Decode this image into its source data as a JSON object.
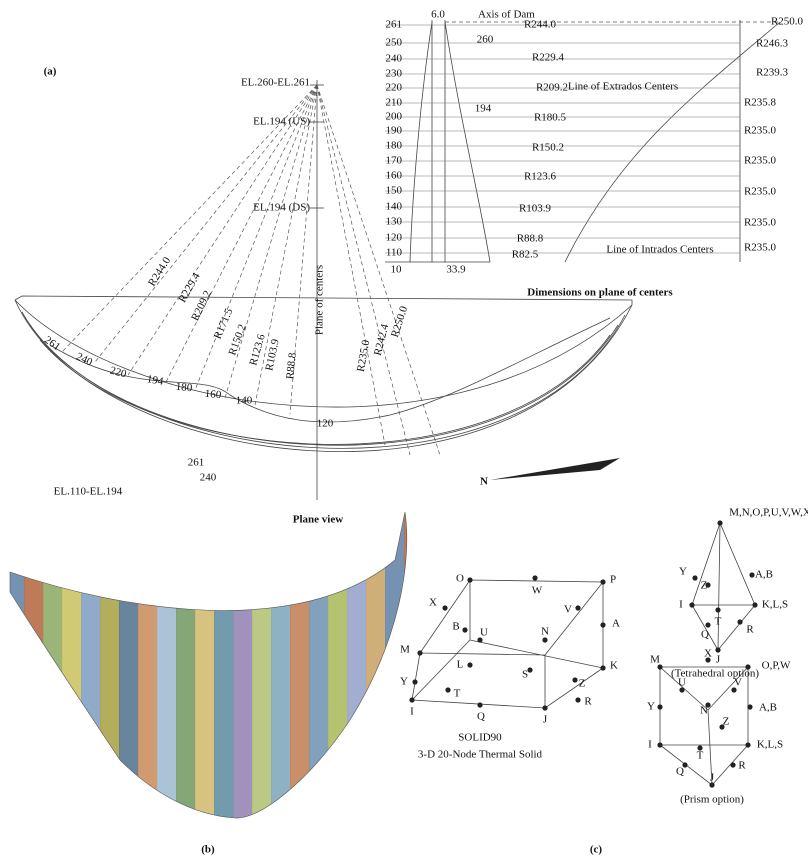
{
  "panel_labels": [
    "(a)",
    "(b)",
    "(c)"
  ],
  "plane_view": {
    "title": "Plane view",
    "elevations": [
      "EL.260-EL.261",
      "EL.194 (US)",
      "EL.194 (DS)"
    ],
    "radii": [
      "R244.0",
      "R229.4",
      "R209.2",
      "R171.5",
      "R150.2",
      "R123.6",
      "R103.9",
      "R88.8",
      "Plane of centers",
      "R235.0",
      "R242.4",
      "R250.0"
    ],
    "contours": [
      "261",
      "240",
      "220",
      "194",
      "180",
      "160",
      "140",
      "120"
    ],
    "bottom_contours": [
      "261",
      "240"
    ],
    "base_elevation": "EL.110-EL.194",
    "north": "N"
  },
  "dimensions": {
    "title": "Dimensions on plane of centers",
    "elevations": [
      "261",
      "250",
      "240",
      "230",
      "220",
      "210",
      "200",
      "190",
      "180",
      "170",
      "160",
      "150",
      "140",
      "130",
      "120",
      "110"
    ],
    "radii": [
      "R244.0",
      "R250.0",
      "R246.3",
      "R229.4",
      "R239.3",
      "R209.2",
      "R235.8",
      "R180.5",
      "R235.0",
      "R150.2",
      "R235.0",
      "R123.6",
      "R235.0",
      "R103.9",
      "R235.0",
      "R88.8",
      "R235.0",
      "R82.5"
    ],
    "notes": [
      "6.0",
      "Axis of Dam",
      "260",
      "194",
      "Line of Extrados Centers",
      "Line of Intrados Centers",
      "10",
      "33.9"
    ]
  },
  "solid90": {
    "nodes": [
      "O",
      "W",
      "P",
      "X",
      "V",
      "B",
      "U",
      "N",
      "A",
      "M",
      "L",
      "S",
      "K",
      "Y",
      "T",
      "Z",
      "R",
      "I",
      "Q",
      "J"
    ],
    "caption": [
      "SOLID90",
      "3-D 20-Node Thermal Solid"
    ]
  },
  "tetrahedral": {
    "nodes": [
      "M,N,O,P,U,V,W,X",
      "A,B",
      "Y",
      "Z",
      "I",
      "T",
      "K,L,S",
      "Q",
      "R",
      "J"
    ],
    "caption": "(Tetrahedral option)"
  },
  "prism": {
    "nodes": [
      "M",
      "X",
      "O,P,W",
      "U",
      "V",
      "N",
      "Y",
      "A,B",
      "Z",
      "I",
      "T",
      "K,L,S",
      "Q",
      "R",
      "J"
    ],
    "caption": "(Prism option)"
  }
}
